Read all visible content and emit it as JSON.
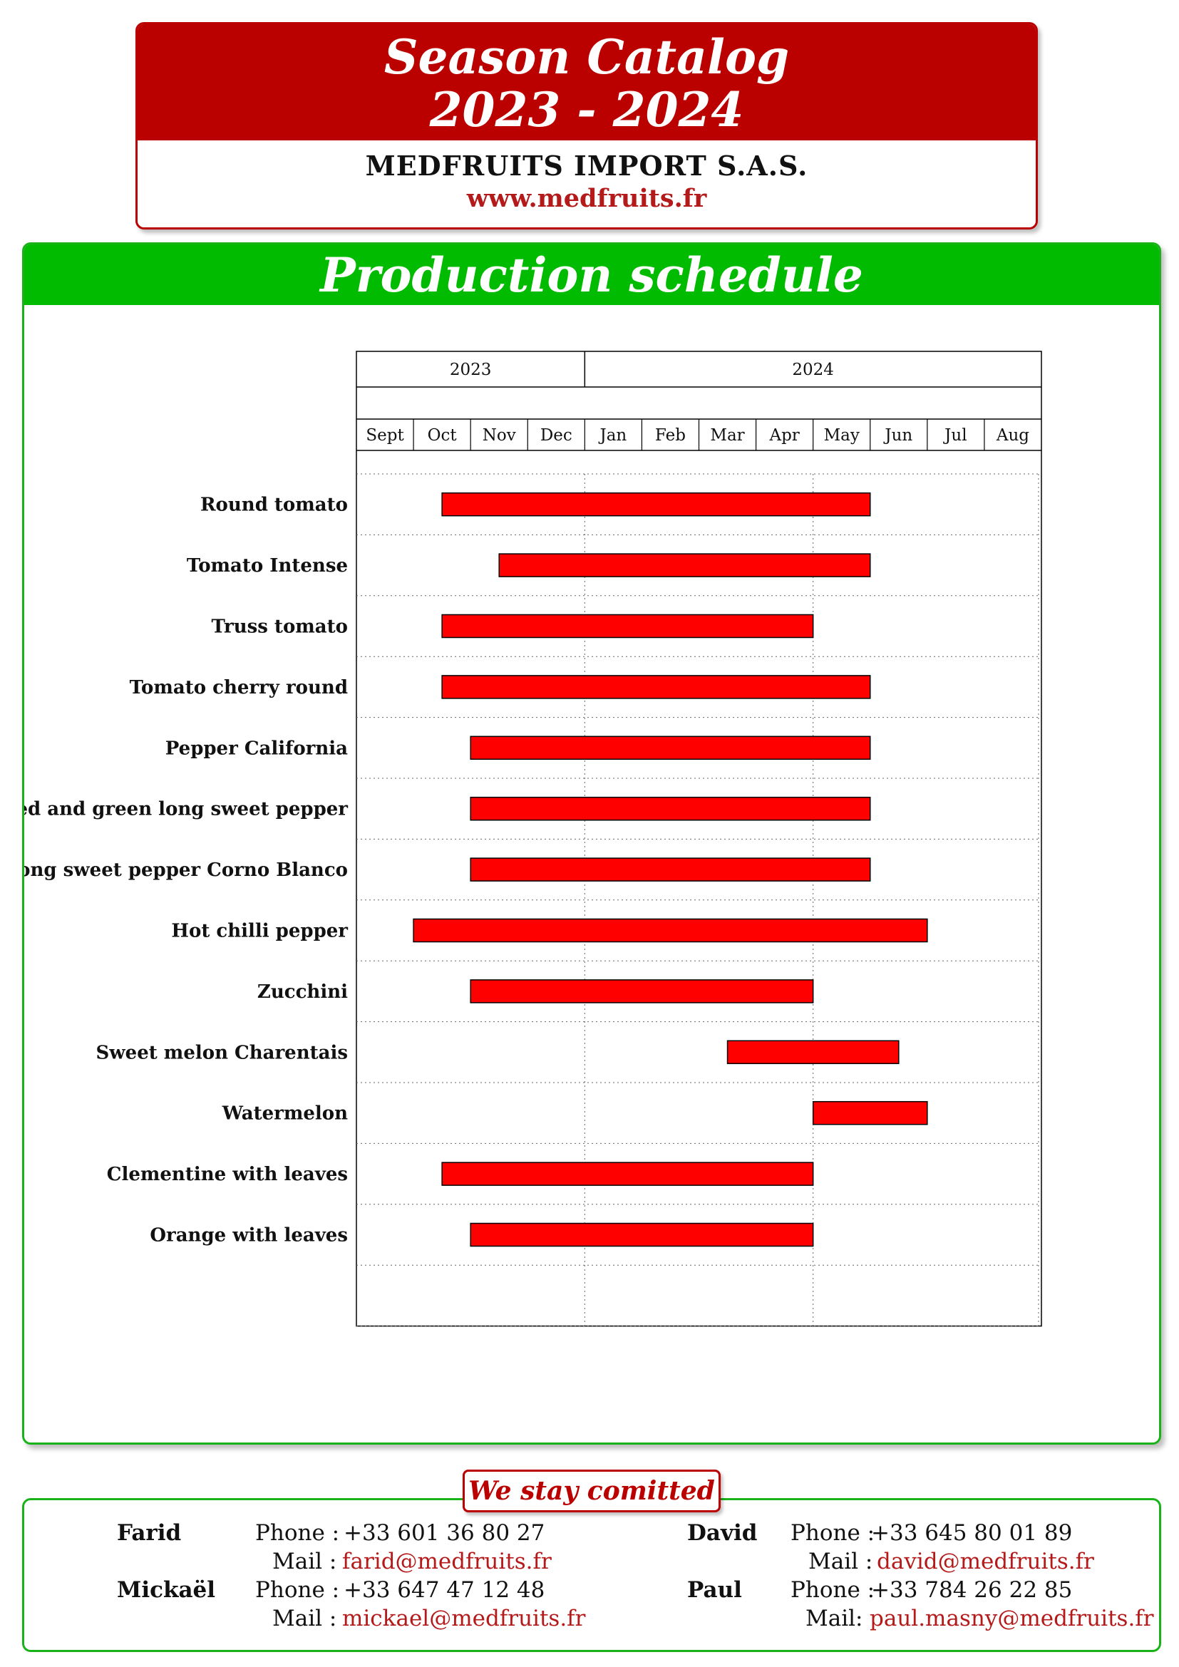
{
  "header": {
    "title_line1": "Season Catalog",
    "title_line2": "2023 - 2024",
    "company": "MEDFRUITS IMPORT S.A.S.",
    "website": "www.medfruits.fr"
  },
  "schedule": {
    "title": "Production schedule"
  },
  "chart_data": {
    "type": "gantt",
    "title": "Production schedule",
    "years": [
      {
        "label": "2023",
        "start": 0,
        "end": 4
      },
      {
        "label": "2024",
        "start": 4,
        "end": 12
      }
    ],
    "months": [
      "Sept",
      "Oct",
      "Nov",
      "Dec",
      "Jan",
      "Feb",
      "Mar",
      "Apr",
      "May",
      "Jun",
      "Jul",
      "Aug"
    ],
    "tasks": [
      {
        "name": "Round tomato",
        "start": 1.5,
        "end": 9.0
      },
      {
        "name": "Tomato Intense",
        "start": 2.5,
        "end": 9.0
      },
      {
        "name": "Truss tomato",
        "start": 1.5,
        "end": 8.0
      },
      {
        "name": "Tomato cherry round",
        "start": 1.5,
        "end": 9.0
      },
      {
        "name": "Pepper California",
        "start": 2.0,
        "end": 9.0
      },
      {
        "name": "Red and green long sweet pepper",
        "start": 2.0,
        "end": 9.0
      },
      {
        "name": "Long sweet pepper Corno Blanco",
        "start": 2.0,
        "end": 9.0
      },
      {
        "name": "Hot chilli pepper",
        "start": 1.0,
        "end": 10.0
      },
      {
        "name": "Zucchini",
        "start": 2.0,
        "end": 8.0
      },
      {
        "name": "Sweet melon Charentais",
        "start": 6.5,
        "end": 9.5
      },
      {
        "name": "Watermelon",
        "start": 8.0,
        "end": 10.0
      },
      {
        "name": "Clementine with leaves",
        "start": 1.5,
        "end": 8.0
      },
      {
        "name": "Orange with leaves",
        "start": 2.0,
        "end": 8.0
      }
    ],
    "bar_color": "#ff0000",
    "grid": true
  },
  "contacts": {
    "badge": "We stay comitted",
    "people": [
      {
        "name": "Farid",
        "phone_label": "Phone :",
        "phone": "+33 601 36 80 27",
        "mail_label": "Mail :",
        "mail": "farid@medfruits.fr"
      },
      {
        "name": "Mickaël",
        "phone_label": "Phone :",
        "phone": "+33 647 47 12 48",
        "mail_label": "Mail :",
        "mail": "mickael@medfruits.fr"
      },
      {
        "name": "David",
        "phone_label": "Phone :",
        "phone": "+33 645 80 01 89",
        "mail_label": "Mail :",
        "mail": "david@medfruits.fr"
      },
      {
        "name": "Paul",
        "phone_label": "Phone :",
        "phone": "+33 784 26 22 85",
        "mail_label": "Mail:",
        "mail": "paul.masny@medfruits.fr"
      }
    ]
  },
  "colors": {
    "header_red": "#bb0000",
    "schedule_green": "#00bb00",
    "link_red": "#b51a1a"
  }
}
